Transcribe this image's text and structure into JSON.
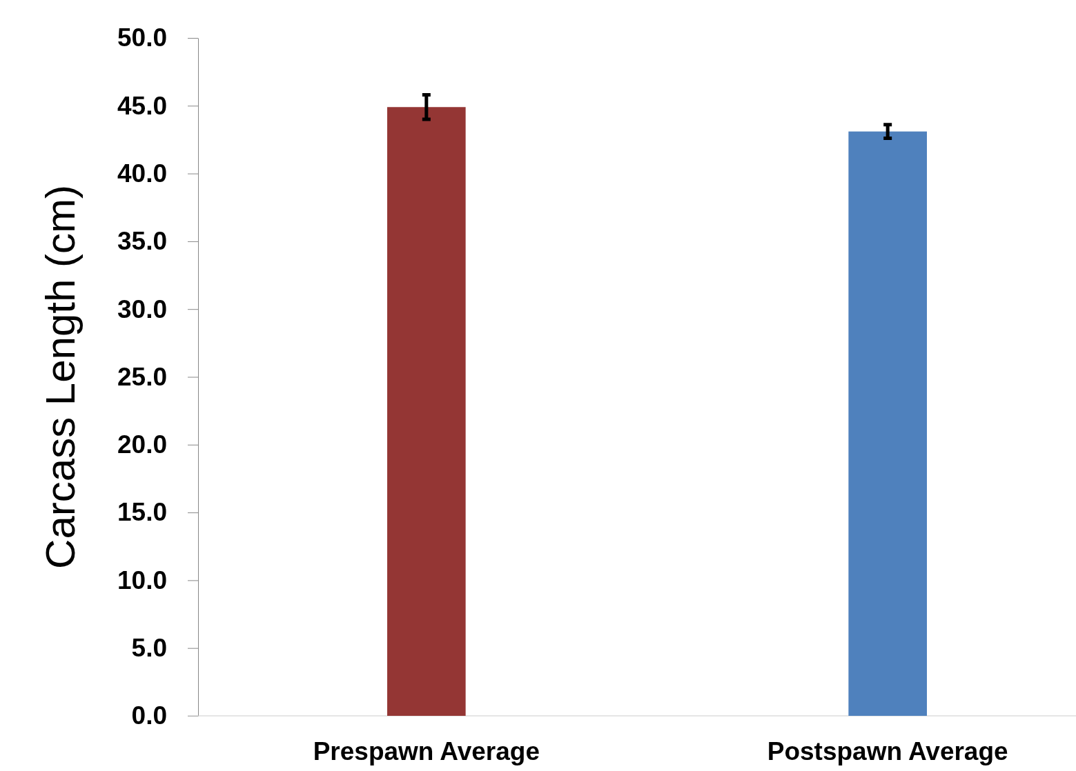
{
  "chart_data": {
    "type": "bar",
    "ylabel": "Carcass Length (cm)",
    "categories": [
      "Prespawn Average",
      "Postspawn Average"
    ],
    "values": [
      44.9,
      43.1
    ],
    "colors": [
      "#943634",
      "#4f81bd"
    ],
    "errors": [
      0.9,
      0.5
    ],
    "ylim": [
      0,
      50
    ],
    "yticks": [
      {
        "value": 0,
        "label": "0.0"
      },
      {
        "value": 5,
        "label": "5.0"
      },
      {
        "value": 10,
        "label": "10.0"
      },
      {
        "value": 15,
        "label": "15.0"
      },
      {
        "value": 20,
        "label": "20.0"
      },
      {
        "value": 25,
        "label": "25.0"
      },
      {
        "value": 30,
        "label": "30.0"
      },
      {
        "value": 35,
        "label": "35.0"
      },
      {
        "value": 40,
        "label": "40.0"
      },
      {
        "value": 45,
        "label": "45.0"
      },
      {
        "value": 50,
        "label": "50.0"
      }
    ],
    "grid": false
  }
}
